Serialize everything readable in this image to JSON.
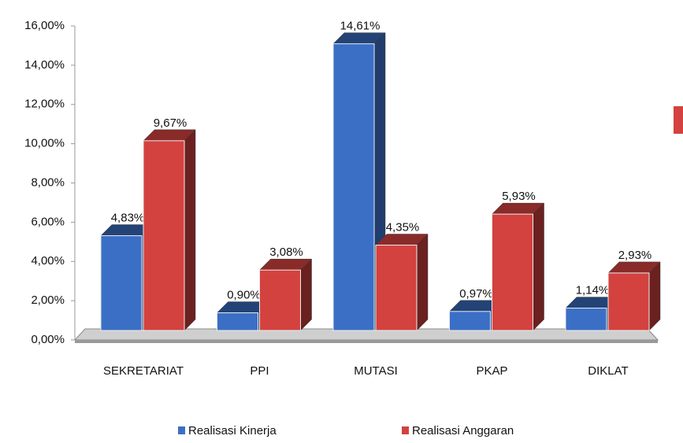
{
  "chart_data": {
    "type": "bar3d",
    "categories": [
      "SEKRETARIAT",
      "PPI",
      "MUTASI",
      "PKAP",
      "DIKLAT"
    ],
    "series": [
      {
        "name": "Realisasi Kinerja",
        "color": "#3b6fc6",
        "values": [
          4.83,
          0.9,
          14.61,
          0.97,
          1.14
        ],
        "value_labels": [
          "4,83%",
          "0,90%",
          "14,61%",
          "0,97%",
          "1,14%"
        ]
      },
      {
        "name": "Realisasi Anggaran",
        "color": "#d3423f",
        "values": [
          9.67,
          3.08,
          4.35,
          5.93,
          2.93
        ],
        "value_labels": [
          "9,67%",
          "3,08%",
          "4,35%",
          "5,93%",
          "2,93%"
        ]
      }
    ],
    "ylim": [
      0,
      16
    ],
    "yticks": [
      {
        "value": 0,
        "label": "0,00%"
      },
      {
        "value": 2,
        "label": "2,00%"
      },
      {
        "value": 4,
        "label": "4,00%"
      },
      {
        "value": 6,
        "label": "6,00%"
      },
      {
        "value": 8,
        "label": "8,00%"
      },
      {
        "value": 10,
        "label": "10,00%"
      },
      {
        "value": 12,
        "label": "12,00%"
      },
      {
        "value": 14,
        "label": "14,00%"
      },
      {
        "value": 16,
        "label": "16,00%"
      }
    ],
    "grid": false,
    "legend": "bottom"
  }
}
